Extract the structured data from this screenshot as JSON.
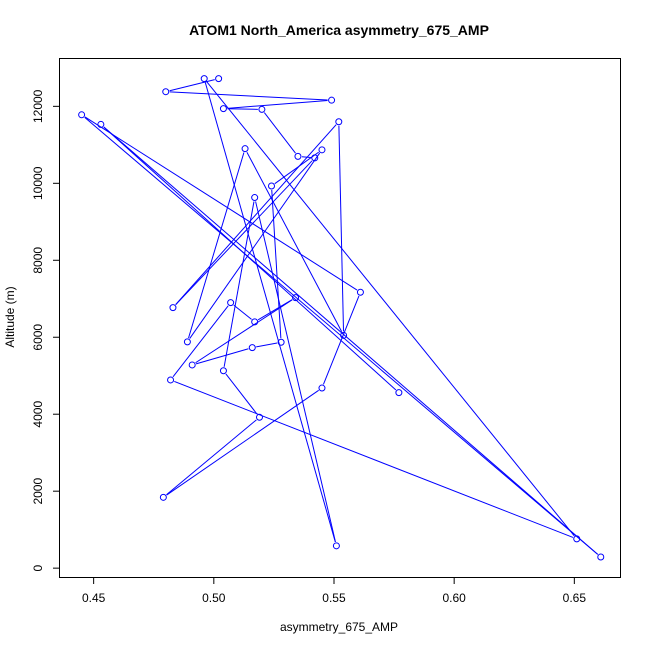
{
  "chart_data": {
    "type": "line",
    "title": "ATOM1 North_America asymmetry_675_AMP",
    "xlabel": "asymmetry_675_AMP",
    "ylabel": "Altitude (m)",
    "xlim": [
      0.436,
      0.669
    ],
    "ylim": [
      -230,
      13230
    ],
    "x_ticks": [
      0.45,
      0.5,
      0.55,
      0.6,
      0.65
    ],
    "x_tick_labels": [
      "0.45",
      "0.50",
      "0.55",
      "0.60",
      "0.65"
    ],
    "y_ticks": [
      0,
      2000,
      4000,
      6000,
      8000,
      10000,
      12000
    ],
    "y_tick_labels": [
      "0",
      "2000",
      "4000",
      "6000",
      "8000",
      "10000",
      "12000"
    ],
    "marker": "open-circle",
    "color": "#0000ff",
    "grid": false,
    "series": [
      {
        "x": [
          0.502,
          0.48,
          0.549,
          0.504,
          0.52,
          0.535,
          0.542,
          0.483,
          0.552,
          0.554,
          0.513,
          0.489,
          0.545,
          0.524,
          0.528,
          0.516,
          0.491,
          0.534,
          0.517,
          0.507,
          0.482,
          0.651,
          0.496,
          0.551,
          0.517,
          0.504,
          0.519,
          0.479,
          0.545,
          0.561,
          0.445,
          0.661,
          0.453,
          0.577
        ],
        "y": [
          12720,
          12380,
          12160,
          11940,
          11920,
          10700,
          10660,
          6770,
          11600,
          6050,
          10900,
          5880,
          10870,
          9930,
          5870,
          5730,
          5280,
          7030,
          6400,
          6900,
          4890,
          760,
          12720,
          580,
          9630,
          5130,
          3920,
          1840,
          4680,
          7170,
          11780,
          290,
          11530,
          4560
        ]
      }
    ]
  }
}
